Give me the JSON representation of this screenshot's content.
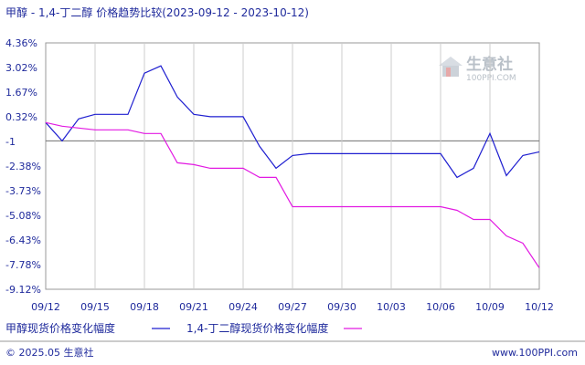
{
  "title": "甲醇 - 1,4-丁二醇 价格趋势比较(2023-09-12 - 2023-10-12)",
  "watermark": {
    "brand": "生意社",
    "url": "100PPI.COM"
  },
  "footer": {
    "left": "© 2025.05 生意社",
    "right": "www.100PPI.com"
  },
  "colors": {
    "series1": "#1f1fd0",
    "series2": "#e21ae2",
    "baseline": "#707070",
    "grid": "#cccccc",
    "text": "#1f2a9c"
  },
  "chart_data": {
    "type": "line",
    "title": "甲醇 - 1,4-丁二醇 价格趋势比较(2023-09-12 - 2023-10-12)",
    "ytick_labels": [
      "4.36%",
      "3.02%",
      "1.67%",
      "0.32%",
      "-1",
      "-2.38%",
      "-3.73%",
      "-5.08%",
      "-6.43%",
      "-7.78%",
      "-9.12%"
    ],
    "ylim": [
      -9.12,
      4.36
    ],
    "xtick_labels": [
      "09/12",
      "09/15",
      "09/18",
      "09/21",
      "09/24",
      "09/27",
      "09/30",
      "10/03",
      "10/06",
      "10/09",
      "10/12"
    ],
    "grid": "vertical",
    "baseline": -1,
    "legend_position": "bottom",
    "x": [
      "09/12",
      "09/13",
      "09/14",
      "09/15",
      "09/16",
      "09/17",
      "09/18",
      "09/19",
      "09/20",
      "09/21",
      "09/22",
      "09/23",
      "09/24",
      "09/25",
      "09/26",
      "09/27",
      "09/28",
      "09/29",
      "09/30",
      "10/01",
      "10/02",
      "10/03",
      "10/04",
      "10/05",
      "10/06",
      "10/07",
      "10/08",
      "10/09",
      "10/10",
      "10/11",
      "10/12"
    ],
    "series": [
      {
        "name": "甲醇现货价格变化幅度",
        "values": [
          0.0,
          -1.0,
          0.2,
          0.45,
          0.45,
          0.45,
          2.7,
          3.1,
          1.4,
          0.45,
          0.32,
          0.32,
          0.32,
          -1.3,
          -2.5,
          -1.8,
          -1.7,
          -1.7,
          -1.7,
          -1.7,
          -1.7,
          -1.7,
          -1.7,
          -1.7,
          -1.7,
          -3.0,
          -2.5,
          -0.6,
          -2.9,
          -1.8,
          -1.6
        ]
      },
      {
        "name": "1,4-丁二醇现货价格变化幅度",
        "values": [
          0.0,
          -0.2,
          -0.3,
          -0.4,
          -0.4,
          -0.4,
          -0.6,
          -0.6,
          -2.2,
          -2.3,
          -2.5,
          -2.5,
          -2.5,
          -3.0,
          -3.0,
          -4.6,
          -4.6,
          -4.6,
          -4.6,
          -4.6,
          -4.6,
          -4.6,
          -4.6,
          -4.6,
          -4.6,
          -4.8,
          -5.3,
          -5.3,
          -6.2,
          -6.6,
          -7.95
        ]
      }
    ]
  }
}
